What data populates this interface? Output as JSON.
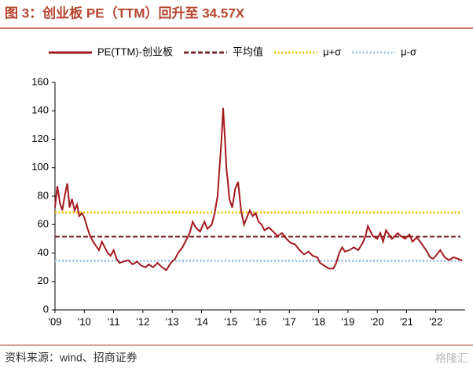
{
  "chart_data": {
    "type": "line",
    "title": "图 3：创业板 PE（TTM）回升至 34.57X",
    "source": "资料来源：wind、招商证券",
    "watermark": "格隆汇",
    "xlim": [
      2009,
      2023
    ],
    "xticks": [
      {
        "value": 2009,
        "label": "'09"
      },
      {
        "value": 2010,
        "label": "'10"
      },
      {
        "value": 2011,
        "label": "'11"
      },
      {
        "value": 2012,
        "label": "'12"
      },
      {
        "value": 2013,
        "label": "'13"
      },
      {
        "value": 2014,
        "label": "'14"
      },
      {
        "value": 2015,
        "label": "'15"
      },
      {
        "value": 2016,
        "label": "'16"
      },
      {
        "value": 2017,
        "label": "'17"
      },
      {
        "value": 2018,
        "label": "'18"
      },
      {
        "value": 2019,
        "label": "'19"
      },
      {
        "value": 2020,
        "label": "'20"
      },
      {
        "value": 2021,
        "label": "'21"
      },
      {
        "value": 2022,
        "label": "'22"
      }
    ],
    "ylim": [
      0,
      160
    ],
    "yticks": [
      0,
      20,
      40,
      60,
      80,
      100,
      120,
      140,
      160
    ],
    "x": [
      2009.0,
      2009.08,
      2009.17,
      2009.25,
      2009.33,
      2009.42,
      2009.5,
      2009.58,
      2009.67,
      2009.75,
      2009.83,
      2009.92,
      2010.0,
      2010.1,
      2010.2,
      2010.3,
      2010.4,
      2010.5,
      2010.6,
      2010.7,
      2010.8,
      2010.9,
      2011.0,
      2011.1,
      2011.2,
      2011.35,
      2011.5,
      2011.65,
      2011.8,
      2011.95,
      2012.1,
      2012.2,
      2012.35,
      2012.5,
      2012.65,
      2012.8,
      2012.95,
      2013.1,
      2013.2,
      2013.35,
      2013.5,
      2013.6,
      2013.7,
      2013.8,
      2013.95,
      2014.1,
      2014.2,
      2014.35,
      2014.45,
      2014.55,
      2014.6,
      2014.65,
      2014.7,
      2014.74,
      2014.8,
      2014.85,
      2014.9,
      2014.95,
      2015.05,
      2015.15,
      2015.25,
      2015.35,
      2015.45,
      2015.55,
      2015.65,
      2015.75,
      2015.85,
      2015.95,
      2016.05,
      2016.15,
      2016.3,
      2016.45,
      2016.6,
      2016.75,
      2016.9,
      2017.05,
      2017.2,
      2017.35,
      2017.5,
      2017.65,
      2017.8,
      2017.95,
      2018.05,
      2018.2,
      2018.35,
      2018.5,
      2018.6,
      2018.7,
      2018.8,
      2018.9,
      2019.05,
      2019.2,
      2019.35,
      2019.5,
      2019.6,
      2019.68,
      2019.75,
      2019.85,
      2020.0,
      2020.1,
      2020.2,
      2020.3,
      2020.4,
      2020.5,
      2020.6,
      2020.7,
      2020.8,
      2020.95,
      2021.1,
      2021.2,
      2021.35,
      2021.5,
      2021.6,
      2021.7,
      2021.8,
      2021.9,
      2022.0,
      2022.15,
      2022.3,
      2022.45,
      2022.6,
      2022.75,
      2022.9
    ],
    "series": [
      {
        "name": "PE(TTM)-创业板",
        "color": "#a3191e",
        "values": [
          72,
          87,
          75,
          70,
          80,
          89,
          72,
          78,
          70,
          74,
          66,
          68,
          65,
          58,
          52,
          48,
          45,
          42,
          48,
          44,
          40,
          38,
          42,
          36,
          33,
          34,
          35,
          32,
          34,
          31,
          30,
          32,
          30,
          33,
          30,
          28,
          33,
          36,
          40,
          44,
          50,
          54,
          62,
          58,
          55,
          62,
          57,
          60,
          68,
          80,
          95,
          110,
          125,
          142,
          120,
          100,
          90,
          78,
          72,
          85,
          90,
          70,
          60,
          65,
          70,
          66,
          68,
          62,
          60,
          56,
          58,
          55,
          52,
          54,
          50,
          47,
          46,
          42,
          39,
          41,
          38,
          37,
          33,
          31,
          29,
          29,
          33,
          40,
          44,
          41,
          42,
          44,
          42,
          47,
          52,
          59,
          56,
          52,
          50,
          54,
          48,
          56,
          53,
          50,
          52,
          54,
          52,
          50,
          53,
          48,
          51,
          47,
          44,
          41,
          37,
          36,
          38,
          42,
          37,
          35,
          37,
          36,
          34.57
        ]
      }
    ],
    "reference_lines": [
      {
        "name": "平均值",
        "color": "#7b2a2a",
        "value": 51.5,
        "style": "dashed"
      },
      {
        "name": "μ+σ",
        "color": "#f2c200",
        "value": 68.5,
        "style": "dotted"
      },
      {
        "name": "μ-σ",
        "color": "#9dc3e6",
        "value": 34.5,
        "style": "dotted"
      }
    ]
  }
}
